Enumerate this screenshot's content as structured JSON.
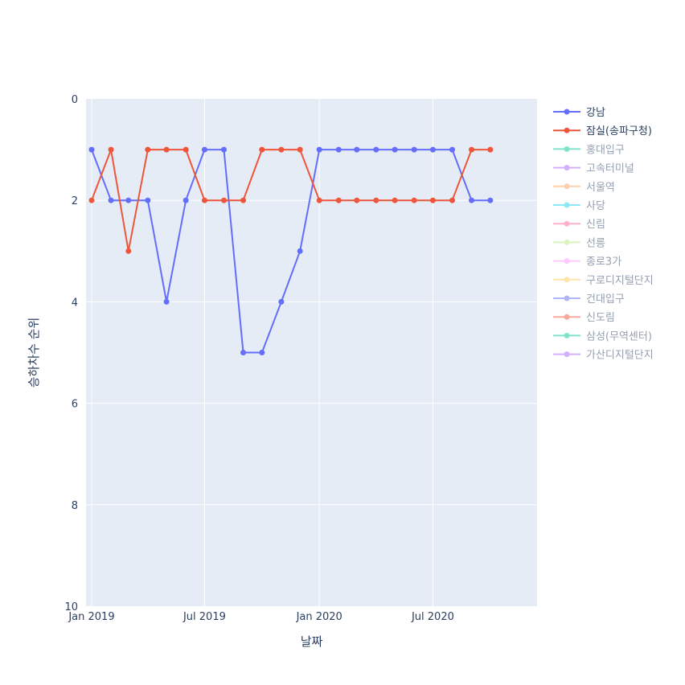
{
  "chart_data": {
    "type": "line",
    "xlabel": "날짜",
    "ylabel": "승하차수 순위",
    "ylim": [
      10,
      0
    ],
    "y_reversed": true,
    "y_ticks": [
      "0",
      "2",
      "4",
      "6",
      "8",
      "10"
    ],
    "x_ticks": [
      {
        "label": "Jan 2019",
        "date": "2019-01"
      },
      {
        "label": "Jul 2019",
        "date": "2019-07"
      },
      {
        "label": "Jan 2020",
        "date": "2020-01"
      },
      {
        "label": "Jul 2020",
        "date": "2020-07"
      }
    ],
    "x": [
      "2019-01",
      "2019-02",
      "2019-03",
      "2019-04",
      "2019-05",
      "2019-06",
      "2019-07",
      "2019-08",
      "2019-09",
      "2019-10",
      "2019-11",
      "2019-12",
      "2020-01",
      "2020-02",
      "2020-03",
      "2020-04",
      "2020-05",
      "2020-06",
      "2020-07",
      "2020-08",
      "2020-09",
      "2020-10"
    ],
    "grid": true,
    "legend_position": "right",
    "series": [
      {
        "name": "강남",
        "color": "#636efa",
        "visible": true,
        "values": [
          1,
          2,
          2,
          2,
          4,
          2,
          1,
          1,
          5,
          5,
          4,
          3,
          1,
          1,
          1,
          1,
          1,
          1,
          1,
          1,
          2,
          2
        ]
      },
      {
        "name": "잠실(송파구청)",
        "color": "#ef553b",
        "visible": true,
        "values": [
          2,
          1,
          3,
          1,
          1,
          1,
          2,
          2,
          2,
          1,
          1,
          1,
          2,
          2,
          2,
          2,
          2,
          2,
          2,
          2,
          1,
          1
        ]
      },
      {
        "name": "홍대입구",
        "color": "#00cc96",
        "visible": false
      },
      {
        "name": "고속터미널",
        "color": "#ab63fa",
        "visible": false
      },
      {
        "name": "서울역",
        "color": "#ffa15a",
        "visible": false
      },
      {
        "name": "사당",
        "color": "#19d3f3",
        "visible": false
      },
      {
        "name": "신림",
        "color": "#ff6692",
        "visible": false
      },
      {
        "name": "선릉",
        "color": "#b6e880",
        "visible": false
      },
      {
        "name": "종로3가",
        "color": "#ff97ff",
        "visible": false
      },
      {
        "name": "구로디지털단지",
        "color": "#fecb52",
        "visible": false
      },
      {
        "name": "건대입구",
        "color": "#636efa",
        "visible": false
      },
      {
        "name": "신도림",
        "color": "#ef553b",
        "visible": false
      },
      {
        "name": "삼성(무역센터)",
        "color": "#00cc96",
        "visible": false
      },
      {
        "name": "가산디지털단지",
        "color": "#ab63fa",
        "visible": false
      }
    ]
  }
}
